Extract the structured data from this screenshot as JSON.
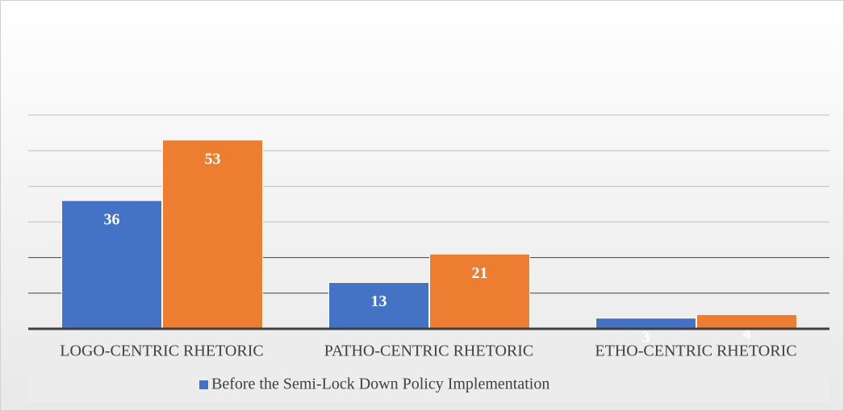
{
  "chart_data": {
    "type": "bar",
    "categories": [
      "LOGO-CENTRIC RHETORIC",
      "PATHO-CENTRIC RHETORIC",
      "ETHO-CENTRIC RHETORIC"
    ],
    "series": [
      {
        "name": "Before the Semi-Lock Down Policy Implementation",
        "color": "#4472c4",
        "values": [
          36,
          13,
          3
        ]
      },
      {
        "color": "#ed7d31",
        "values": [
          53,
          21,
          4
        ]
      }
    ],
    "ylim": [
      0,
      70
    ],
    "yticks": [
      0,
      10,
      20,
      30,
      40,
      50,
      60
    ],
    "grid": true
  }
}
